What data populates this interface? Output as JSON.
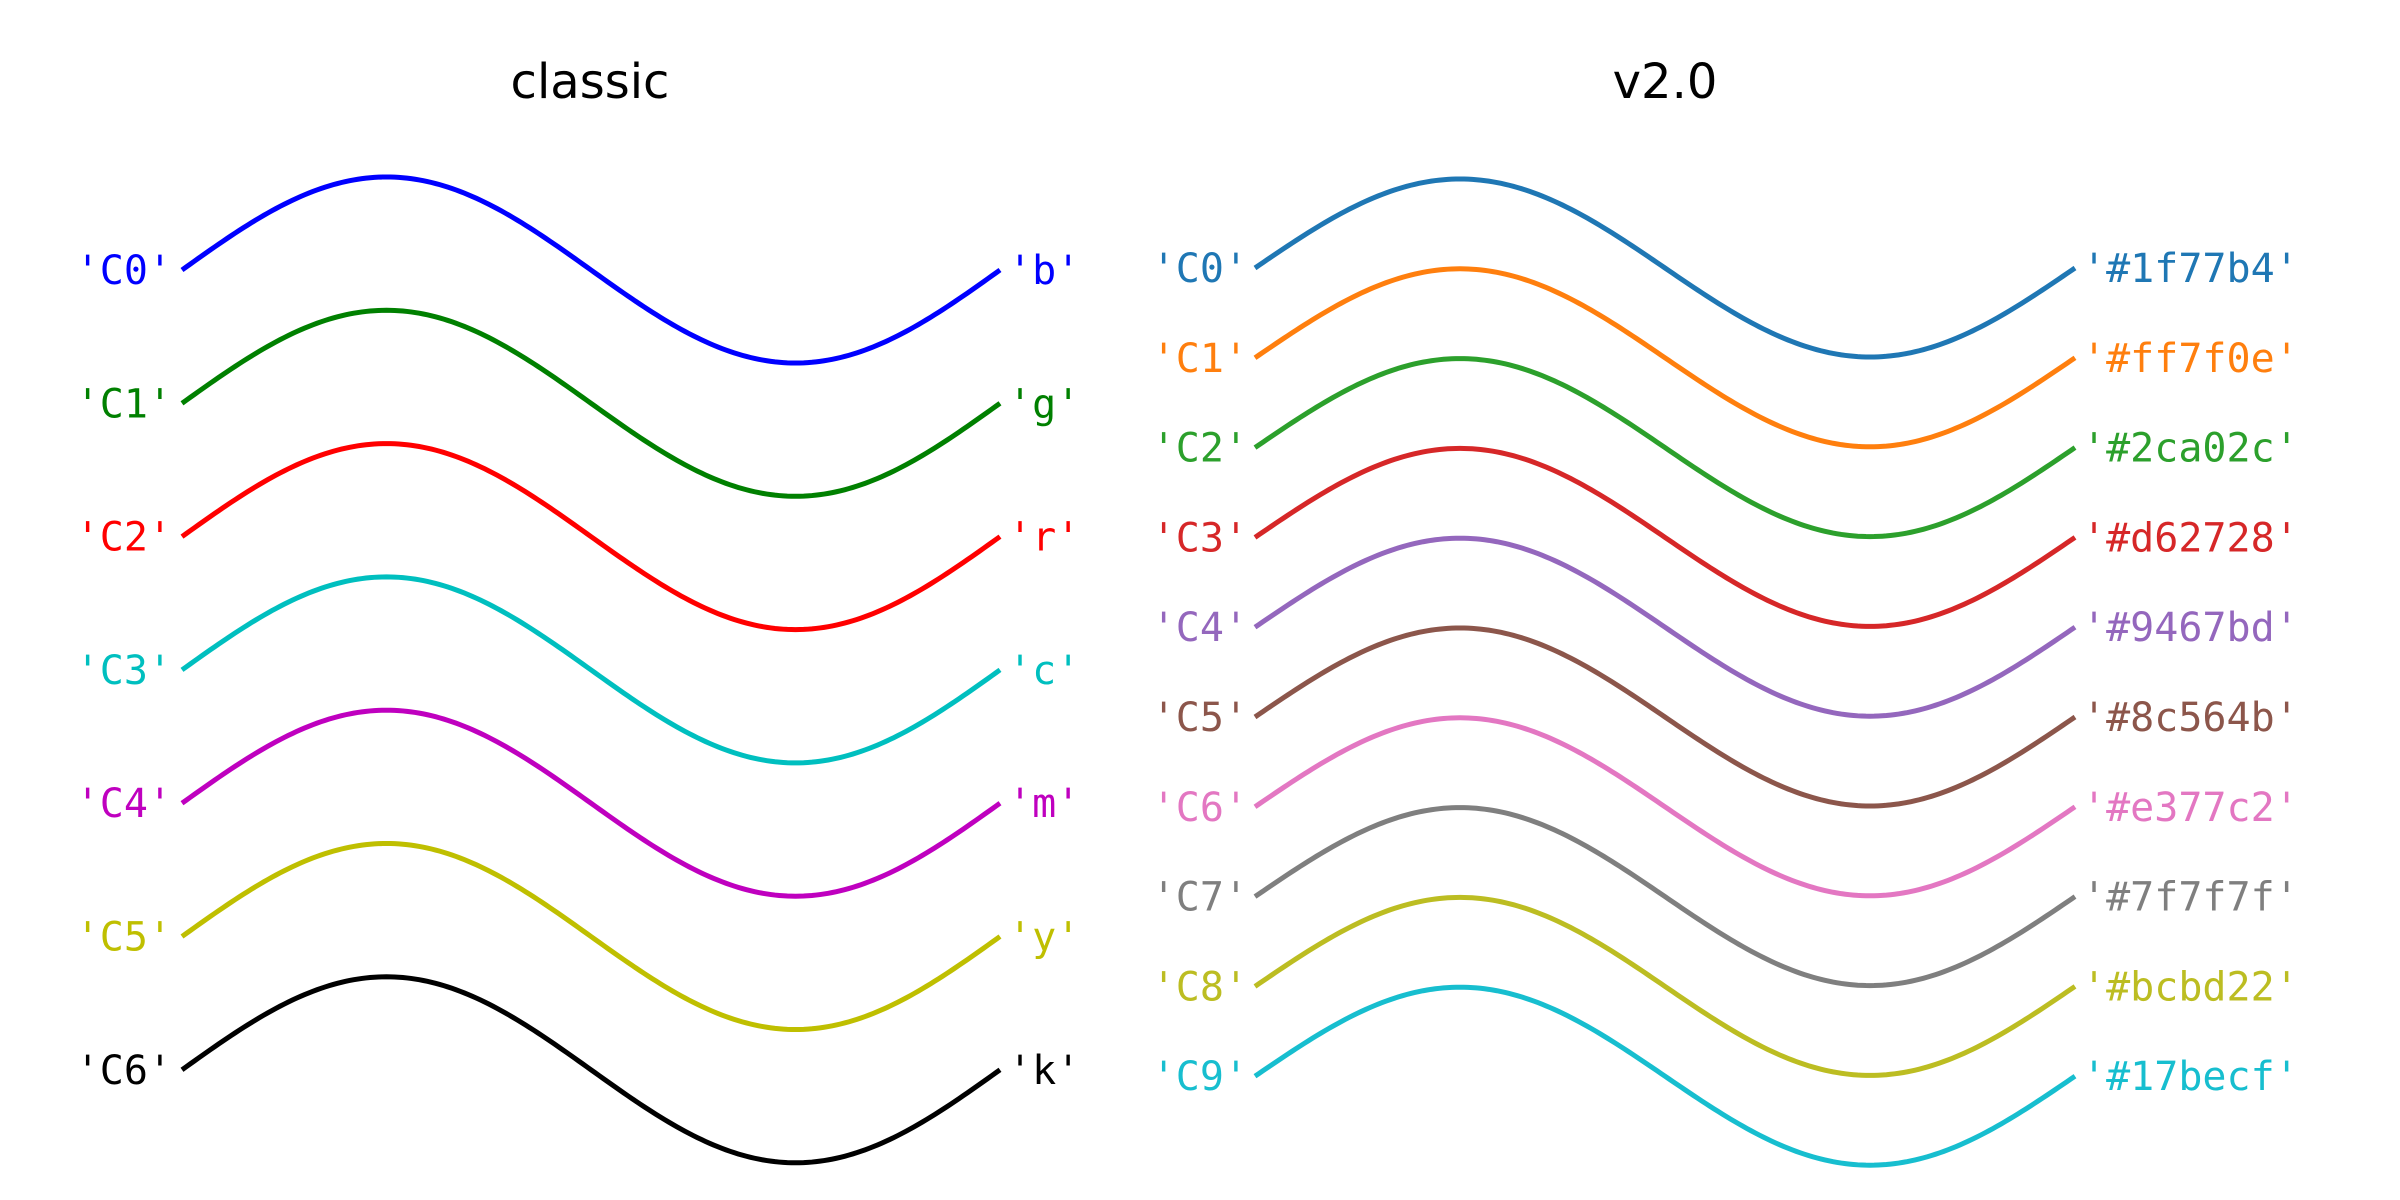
{
  "chart_data": [
    {
      "type": "line",
      "title": "classic",
      "function": "sine",
      "x_range": [
        0,
        6.2832
      ],
      "series": [
        {
          "name": "'C0'",
          "right_label": "'b'",
          "color": "#0000ff"
        },
        {
          "name": "'C1'",
          "right_label": "'g'",
          "color": "#008000"
        },
        {
          "name": "'C2'",
          "right_label": "'r'",
          "color": "#ff0000"
        },
        {
          "name": "'C3'",
          "right_label": "'c'",
          "color": "#00bfbf"
        },
        {
          "name": "'C4'",
          "right_label": "'m'",
          "color": "#bf00bf"
        },
        {
          "name": "'C5'",
          "right_label": "'y'",
          "color": "#bfbf00"
        },
        {
          "name": "'C6'",
          "right_label": "'k'",
          "color": "#000000"
        }
      ]
    },
    {
      "type": "line",
      "title": "v2.0",
      "function": "sine",
      "x_range": [
        0,
        6.2832
      ],
      "series": [
        {
          "name": "'C0'",
          "right_label": "'#1f77b4'",
          "color": "#1f77b4"
        },
        {
          "name": "'C1'",
          "right_label": "'#ff7f0e'",
          "color": "#ff7f0e"
        },
        {
          "name": "'C2'",
          "right_label": "'#2ca02c'",
          "color": "#2ca02c"
        },
        {
          "name": "'C3'",
          "right_label": "'#d62728'",
          "color": "#d62728"
        },
        {
          "name": "'C4'",
          "right_label": "'#9467bd'",
          "color": "#9467bd"
        },
        {
          "name": "'C5'",
          "right_label": "'#8c564b'",
          "color": "#8c564b"
        },
        {
          "name": "'C6'",
          "right_label": "'#e377c2'",
          "color": "#e377c2"
        },
        {
          "name": "'C7'",
          "right_label": "'#7f7f7f'",
          "color": "#7f7f7f"
        },
        {
          "name": "'C8'",
          "right_label": "'#bcbd22'",
          "color": "#bcbd22"
        },
        {
          "name": "'C9'",
          "right_label": "'#17becf'",
          "color": "#17becf"
        }
      ]
    }
  ]
}
